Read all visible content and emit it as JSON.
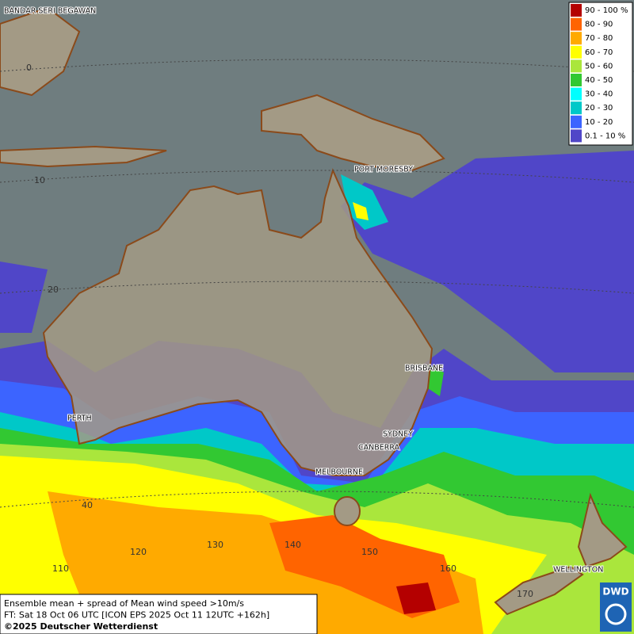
{
  "map": {
    "cities": [
      "BANDAR SERI BEGAWAN",
      "PORT MORESBY",
      "BRISBANE",
      "PERTH",
      "SYDNEY",
      "CANBERRA",
      "MELBOURNE",
      "WELLINGTON"
    ],
    "grid_labels": [
      0,
      10,
      20,
      40,
      110,
      120,
      130,
      140,
      150,
      160,
      170
    ],
    "legend": [
      {
        "label": "90 - 100 %",
        "color": "#b40000"
      },
      {
        "label": "80 - 90",
        "color": "#ff6400"
      },
      {
        "label": "70 - 80",
        "color": "#ffaa00"
      },
      {
        "label": "60 - 70",
        "color": "#ffff00"
      },
      {
        "label": "50 - 60",
        "color": "#aae63c"
      },
      {
        "label": "40 - 50",
        "color": "#32c832"
      },
      {
        "label": "30 - 40",
        "color": "#00ffff"
      },
      {
        "label": "20 - 30",
        "color": "#00c8c8"
      },
      {
        "label": "10 - 20",
        "color": "#3c64ff"
      },
      {
        "label": "0.1 - 10 %",
        "color": "#5046c8"
      }
    ],
    "caption": [
      "Ensemble mean + spread of Mean wind speed >10m/s",
      "FT: Sat 18 Oct 06 UTC [ICON EPS 2025 Oct 11 12UTC +162h]",
      "©2025 Deutscher Wetterdienst"
    ],
    "logo": "DWD"
  }
}
